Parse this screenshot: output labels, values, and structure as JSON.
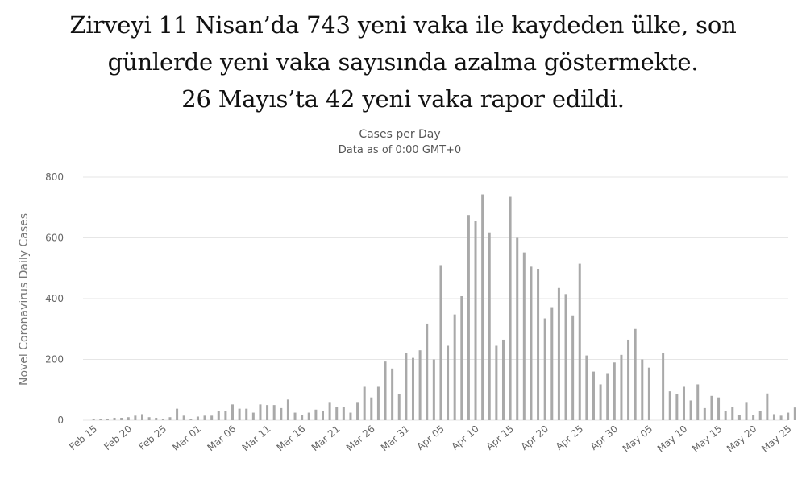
{
  "headline": {
    "line1": "Zirveyi 11 Nisan’da 743 yeni vaka ile kaydeden ülke, son",
    "line2": "günlerde yeni vaka sayısında azalma göstermekte.",
    "line3": "26 Mayıs’ta 42 yeni vaka rapor edildi."
  },
  "colors": {
    "bar": "#a9a9a9",
    "grid": "#e6e6e6",
    "text": "#666666"
  },
  "chart_data": {
    "type": "bar",
    "title": "Cases per Day",
    "subtitle": "Data as of 0:00 GMT+0",
    "ylabel": "Novel Coronavirus Daily Cases",
    "xlabel": "",
    "ylim": [
      0,
      800
    ],
    "yticks": [
      0,
      200,
      400,
      600,
      800
    ],
    "grid": true,
    "x_tick_labels": [
      "Feb 15",
      "Feb 20",
      "Feb 25",
      "Mar 01",
      "Mar 06",
      "Mar 11",
      "Mar 16",
      "Mar 21",
      "Mar 26",
      "Mar 31",
      "Apr 05",
      "Apr 10",
      "Apr 15",
      "Apr 20",
      "Apr 25",
      "Apr 30",
      "May 05",
      "May 10",
      "May 15",
      "May 20",
      "May 25"
    ],
    "categories": [
      "Feb 15",
      "Feb 16",
      "Feb 17",
      "Feb 18",
      "Feb 19",
      "Feb 20",
      "Feb 21",
      "Feb 22",
      "Feb 23",
      "Feb 24",
      "Feb 25",
      "Feb 26",
      "Feb 27",
      "Feb 28",
      "Feb 29",
      "Mar 01",
      "Mar 02",
      "Mar 03",
      "Mar 04",
      "Mar 05",
      "Mar 06",
      "Mar 07",
      "Mar 08",
      "Mar 09",
      "Mar 10",
      "Mar 11",
      "Mar 12",
      "Mar 13",
      "Mar 14",
      "Mar 15",
      "Mar 16",
      "Mar 17",
      "Mar 18",
      "Mar 19",
      "Mar 20",
      "Mar 21",
      "Mar 22",
      "Mar 23",
      "Mar 24",
      "Mar 25",
      "Mar 26",
      "Mar 27",
      "Mar 28",
      "Mar 29",
      "Mar 30",
      "Mar 31",
      "Apr 01",
      "Apr 02",
      "Apr 03",
      "Apr 04",
      "Apr 05",
      "Apr 06",
      "Apr 07",
      "Apr 08",
      "Apr 09",
      "Apr 10",
      "Apr 11",
      "Apr 12",
      "Apr 13",
      "Apr 14",
      "Apr 15",
      "Apr 16",
      "Apr 17",
      "Apr 18",
      "Apr 19",
      "Apr 20",
      "Apr 21",
      "Apr 22",
      "Apr 23",
      "Apr 24",
      "Apr 25",
      "Apr 26",
      "Apr 27",
      "Apr 28",
      "Apr 29",
      "Apr 30",
      "May 01",
      "May 02",
      "May 03",
      "May 04",
      "May 05",
      "May 06",
      "May 07",
      "May 08",
      "May 09",
      "May 10",
      "May 11",
      "May 12",
      "May 13",
      "May 14",
      "May 15",
      "May 16",
      "May 17",
      "May 18",
      "May 19",
      "May 20",
      "May 21",
      "May 22",
      "May 23",
      "May 24",
      "May 25",
      "May 26"
    ],
    "values": [
      3,
      5,
      5,
      8,
      8,
      10,
      15,
      20,
      10,
      8,
      3,
      10,
      38,
      15,
      5,
      12,
      15,
      15,
      30,
      30,
      52,
      38,
      38,
      25,
      52,
      50,
      50,
      40,
      68,
      25,
      18,
      25,
      35,
      30,
      60,
      45,
      45,
      25,
      60,
      110,
      75,
      110,
      193,
      170,
      85,
      220,
      205,
      230,
      318,
      200,
      510,
      245,
      348,
      408,
      675,
      655,
      743,
      618,
      245,
      265,
      735,
      600,
      552,
      505,
      498,
      335,
      372,
      435,
      415,
      345,
      515,
      213,
      160,
      118,
      155,
      190,
      215,
      265,
      300,
      200,
      173,
      0,
      222,
      95,
      85,
      110,
      65,
      118,
      40,
      80,
      75,
      30,
      45,
      18,
      60,
      18,
      30,
      88,
      20,
      15,
      25,
      42
    ]
  }
}
